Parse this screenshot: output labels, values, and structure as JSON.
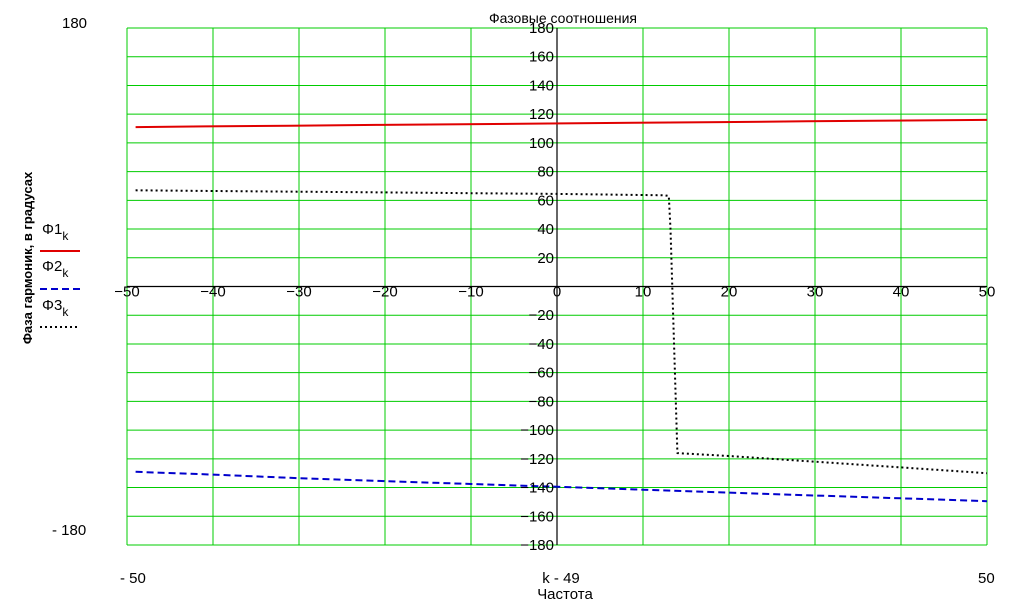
{
  "chart_data": {
    "type": "line",
    "title": "Фазовые соотношения",
    "xlabel_expr": "k - 49",
    "xlabel": "Частота",
    "ylabel": "Фаза гармоник, в градусах",
    "xlim": [
      -50,
      50
    ],
    "ylim": [
      -180,
      180
    ],
    "x_edge_labels": [
      "- 50",
      "50"
    ],
    "y_edge_labels": [
      "180",
      "- 180"
    ],
    "x_ticks": [
      -50,
      -40,
      -30,
      -20,
      -10,
      0,
      10,
      20,
      30,
      40,
      50
    ],
    "y_ticks": [
      180,
      160,
      140,
      120,
      100,
      80,
      60,
      40,
      20,
      -20,
      -40,
      -60,
      -80,
      -100,
      -120,
      -140,
      -160,
      -180
    ],
    "grid": true,
    "grid_color": "#00cc00",
    "legend_position": "left",
    "series": [
      {
        "name": "Φ1",
        "subscript": "k",
        "color": "#e00000",
        "style": "solid",
        "x": [
          -49,
          -41,
          -31,
          -21,
          -11,
          -1,
          9,
          19,
          29,
          39,
          50
        ],
        "y": [
          111,
          111.5,
          112,
          112.5,
          113,
          113.5,
          114,
          114.5,
          115,
          115.5,
          116
        ]
      },
      {
        "name": "Φ2",
        "subscript": "k",
        "color": "#0000cc",
        "style": "dashed",
        "x": [
          -49,
          -40,
          -30,
          -20,
          -10,
          0,
          10,
          20,
          30,
          40,
          50
        ],
        "y": [
          -129,
          -131,
          -133.5,
          -135.5,
          -137.5,
          -139.5,
          -141.5,
          -143.5,
          -145.5,
          -147.5,
          -149.5
        ]
      },
      {
        "name": "Φ3",
        "subscript": "k",
        "color": "#000000",
        "style": "dotted",
        "x": [
          -49,
          -40,
          -30,
          -20,
          -10,
          0,
          12.5,
          13,
          13.2,
          14,
          20,
          30,
          40,
          50
        ],
        "y": [
          67,
          66.5,
          66,
          65.5,
          65,
          64.5,
          63.5,
          63,
          40,
          -116,
          -118,
          -122,
          -126,
          -130
        ]
      }
    ]
  }
}
